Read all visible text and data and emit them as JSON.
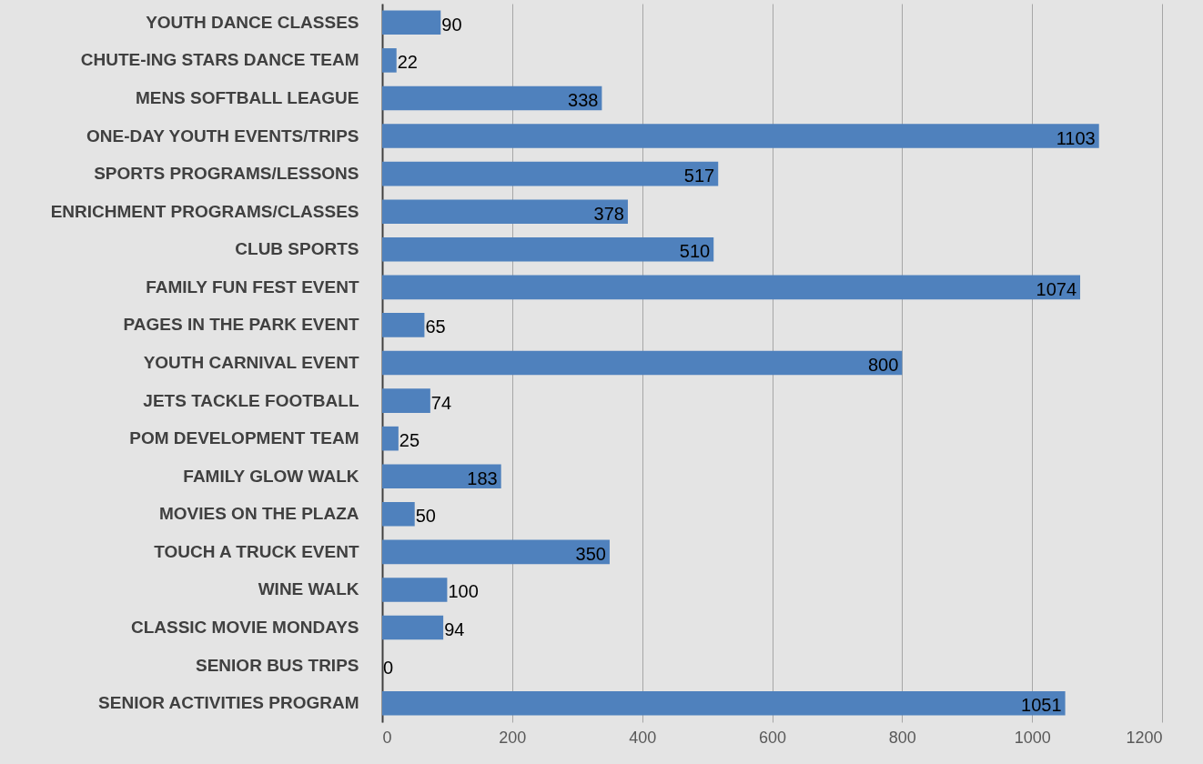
{
  "chart_data": {
    "type": "bar",
    "orientation": "horizontal",
    "categories": [
      "YOUTH DANCE CLASSES",
      "CHUTE-ING STARS DANCE TEAM",
      "MENS SOFTBALL LEAGUE",
      "ONE-DAY YOUTH EVENTS/TRIPS",
      "SPORTS PROGRAMS/LESSONS",
      "ENRICHMENT PROGRAMS/CLASSES",
      "CLUB SPORTS",
      "FAMILY FUN FEST EVENT",
      "PAGES IN THE PARK EVENT",
      "YOUTH CARNIVAL EVENT",
      "JETS TACKLE FOOTBALL",
      "POM DEVELOPMENT TEAM",
      "FAMILY GLOW WALK",
      "MOVIES ON THE PLAZA",
      "TOUCH A TRUCK EVENT",
      "WINE WALK",
      "CLASSIC MOVIE MONDAYS",
      "SENIOR BUS TRIPS",
      "SENIOR ACTIVITIES PROGRAM"
    ],
    "values": [
      90,
      22,
      338,
      1103,
      517,
      378,
      510,
      1074,
      65,
      800,
      74,
      25,
      183,
      50,
      350,
      100,
      94,
      0,
      1051
    ],
    "color": "#4f81bd",
    "xlim": [
      0,
      1200
    ],
    "xticks": [
      0,
      200,
      400,
      600,
      800,
      1000,
      1200
    ],
    "grid": "x",
    "data_labels": true
  }
}
